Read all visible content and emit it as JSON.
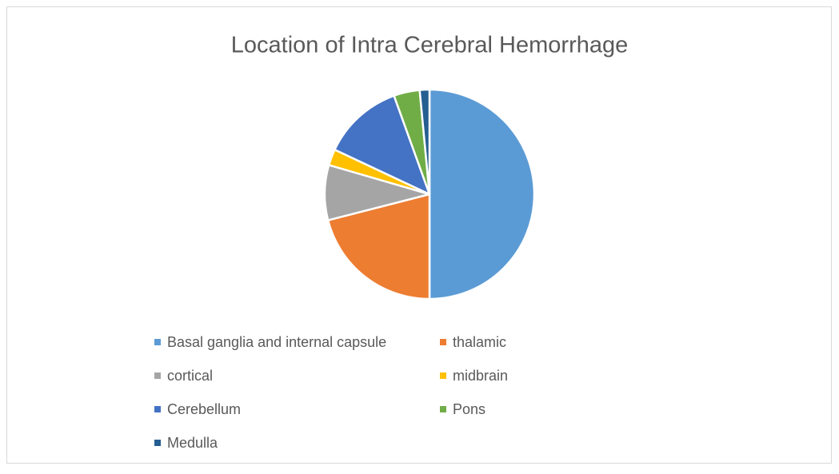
{
  "chart_data": {
    "type": "pie",
    "title": "Location of Intra Cerebral Hemorrhage",
    "categories": [
      "Basal ganglia and internal capsule",
      "thalamic",
      "cortical",
      "midbrain",
      "Cerebellum",
      "Pons",
      "Medulla"
    ],
    "values": [
      50,
      21,
      8.5,
      2.5,
      12.5,
      4,
      1.5
    ],
    "colors": [
      "#5b9bd5",
      "#ed7d31",
      "#a5a5a5",
      "#ffc000",
      "#4472c4",
      "#70ad47",
      "#255e91"
    ],
    "legend": "bottom"
  }
}
